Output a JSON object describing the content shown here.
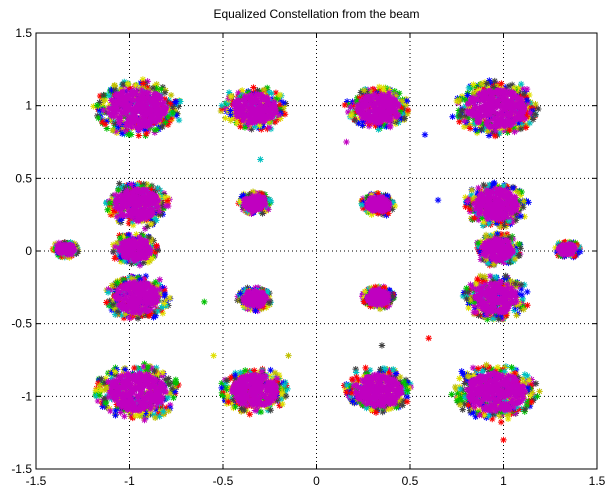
{
  "chart_data": {
    "type": "scatter",
    "title": "Equalized Constellation from the beam",
    "xlabel": "",
    "ylabel": "",
    "xlim": [
      -1.5,
      1.5
    ],
    "ylim": [
      -1.5,
      1.5
    ],
    "xticks": [
      -1.5,
      -1,
      -0.5,
      0,
      0.5,
      1,
      1.5
    ],
    "yticks": [
      -1.5,
      -1,
      -0.5,
      0,
      0.5,
      1,
      1.5
    ],
    "xtick_labels": [
      "-1.5",
      "-1",
      "-0.5",
      "0",
      "0.5",
      "1",
      "1.5"
    ],
    "ytick_labels": [
      "-1.5",
      "-1",
      "-0.5",
      "0",
      "0.5",
      "1",
      "1.5"
    ],
    "grid": true,
    "grid_style": "dotted",
    "marker": "asterisk",
    "series_colors": [
      "#0000ff",
      "#ff0000",
      "#00c000",
      "#00c0c0",
      "#c000c0",
      "#c0c000",
      "#404040",
      "#e0e000"
    ],
    "dominant_color": "#c000c0",
    "clusters": [
      {
        "x": -0.96,
        "y": 0.98,
        "rx": 0.2,
        "ry": 0.17
      },
      {
        "x": -0.33,
        "y": 0.98,
        "rx": 0.15,
        "ry": 0.13
      },
      {
        "x": 0.33,
        "y": 0.98,
        "rx": 0.15,
        "ry": 0.13
      },
      {
        "x": 0.96,
        "y": 0.98,
        "rx": 0.2,
        "ry": 0.17
      },
      {
        "x": -0.96,
        "y": 0.32,
        "rx": 0.15,
        "ry": 0.14
      },
      {
        "x": -0.33,
        "y": 0.33,
        "rx": 0.08,
        "ry": 0.07
      },
      {
        "x": 0.33,
        "y": 0.32,
        "rx": 0.08,
        "ry": 0.07
      },
      {
        "x": 0.96,
        "y": 0.32,
        "rx": 0.15,
        "ry": 0.14
      },
      {
        "x": -0.97,
        "y": 0.01,
        "rx": 0.11,
        "ry": 0.1
      },
      {
        "x": 0.97,
        "y": 0.01,
        "rx": 0.11,
        "ry": 0.1
      },
      {
        "x": -1.34,
        "y": 0.01,
        "rx": 0.06,
        "ry": 0.05
      },
      {
        "x": 1.34,
        "y": 0.01,
        "rx": 0.06,
        "ry": 0.05
      },
      {
        "x": -0.96,
        "y": -0.32,
        "rx": 0.15,
        "ry": 0.14
      },
      {
        "x": -0.33,
        "y": -0.33,
        "rx": 0.08,
        "ry": 0.07
      },
      {
        "x": 0.33,
        "y": -0.32,
        "rx": 0.08,
        "ry": 0.07
      },
      {
        "x": 0.96,
        "y": -0.32,
        "rx": 0.15,
        "ry": 0.14
      },
      {
        "x": -0.96,
        "y": -0.97,
        "rx": 0.2,
        "ry": 0.17
      },
      {
        "x": -0.33,
        "y": -0.96,
        "rx": 0.16,
        "ry": 0.14
      },
      {
        "x": 0.33,
        "y": -0.96,
        "rx": 0.16,
        "ry": 0.14
      },
      {
        "x": 0.96,
        "y": -0.97,
        "rx": 0.2,
        "ry": 0.17
      }
    ],
    "outliers": [
      {
        "x": 0.65,
        "y": 0.35
      },
      {
        "x": 0.6,
        "y": -0.6
      },
      {
        "x": -0.6,
        "y": -0.35
      },
      {
        "x": -0.3,
        "y": 0.63
      },
      {
        "x": 0.16,
        "y": 0.75
      },
      {
        "x": -0.15,
        "y": -0.72
      },
      {
        "x": 0.35,
        "y": -0.65
      },
      {
        "x": -0.55,
        "y": -0.72
      },
      {
        "x": 0.58,
        "y": 0.8
      },
      {
        "x": 1.0,
        "y": -1.3
      }
    ]
  }
}
